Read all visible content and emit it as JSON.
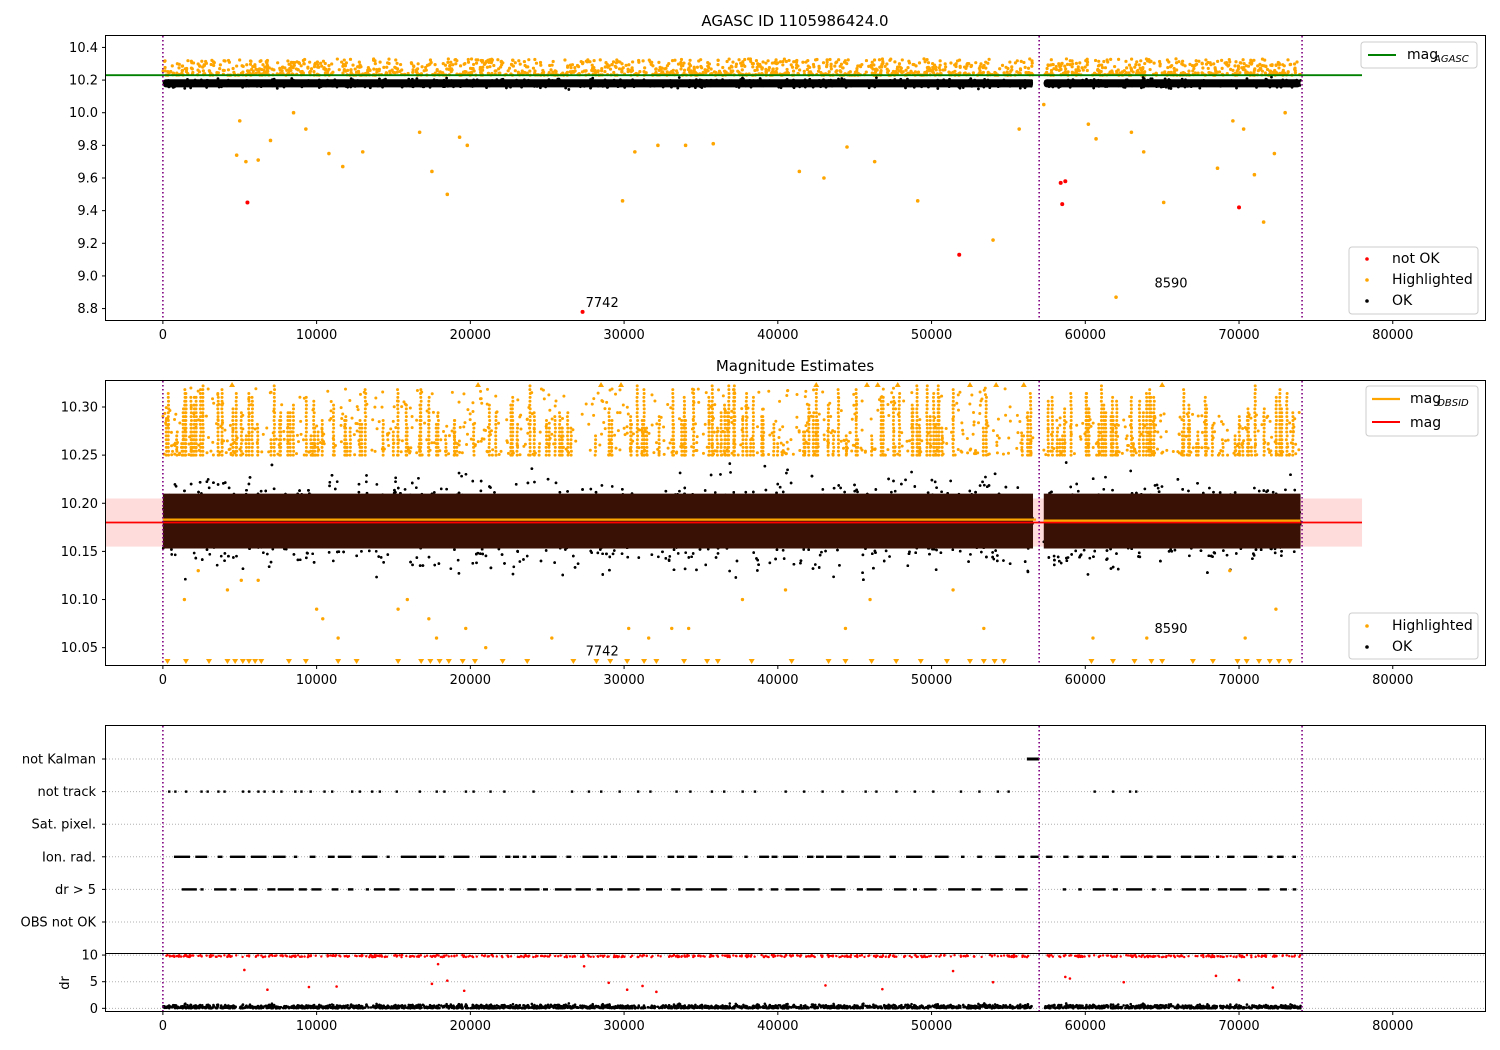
{
  "chart_data": [
    {
      "type": "scatter",
      "title": "AGASC ID 1105986424.0",
      "xlim": [
        -3700,
        86000
      ],
      "ylim": [
        8.73,
        10.47
      ],
      "xticks": [
        0,
        10000,
        20000,
        30000,
        40000,
        50000,
        60000,
        70000,
        80000
      ],
      "yticks": [
        8.8,
        9.0,
        9.2,
        9.4,
        9.6,
        9.8,
        10.0,
        10.2,
        10.4
      ],
      "ytick_labels": [
        "8.8",
        "9.0",
        "9.2",
        "9.4",
        "9.6",
        "9.8",
        "10.0",
        "10.2",
        "10.4"
      ],
      "vlines": [
        0,
        57000,
        74100
      ],
      "reference_line": {
        "name": "mag_AGASC",
        "y": 10.23,
        "x": [
          -3700,
          78000
        ],
        "color": "#008000"
      },
      "series": [
        {
          "name": "not OK",
          "color": "#ff0000",
          "points": [
            [
              5500,
              9.45
            ],
            [
              27300,
              8.78
            ],
            [
              51800,
              9.13
            ],
            [
              58400,
              9.57
            ],
            [
              58700,
              9.58
            ],
            [
              58500,
              9.44
            ],
            [
              70000,
              9.42
            ]
          ]
        },
        {
          "name": "Highlighted",
          "color": "#ffa500",
          "band": {
            "x": [
              0,
              74000
            ],
            "y_range": [
              10.23,
              10.33
            ]
          },
          "points": [
            [
              4800,
              9.74
            ],
            [
              5000,
              9.95
            ],
            [
              5400,
              9.7
            ],
            [
              6200,
              9.71
            ],
            [
              7000,
              9.83
            ],
            [
              8500,
              10.0
            ],
            [
              9300,
              9.9
            ],
            [
              10800,
              9.75
            ],
            [
              11700,
              9.67
            ],
            [
              13000,
              9.76
            ],
            [
              16700,
              9.88
            ],
            [
              17500,
              9.64
            ],
            [
              19300,
              9.85
            ],
            [
              19800,
              9.8
            ],
            [
              18500,
              9.5
            ],
            [
              29900,
              9.46
            ],
            [
              30700,
              9.76
            ],
            [
              32200,
              9.8
            ],
            [
              34000,
              9.8
            ],
            [
              35800,
              9.81
            ],
            [
              41400,
              9.64
            ],
            [
              43000,
              9.6
            ],
            [
              44500,
              9.79
            ],
            [
              46300,
              9.7
            ],
            [
              49100,
              9.46
            ],
            [
              54000,
              9.22
            ],
            [
              55700,
              9.9
            ],
            [
              57300,
              10.05
            ],
            [
              60200,
              9.93
            ],
            [
              60700,
              9.84
            ],
            [
              62000,
              8.87
            ],
            [
              63000,
              9.88
            ],
            [
              63800,
              9.76
            ],
            [
              65100,
              9.45
            ],
            [
              68600,
              9.66
            ],
            [
              69600,
              9.95
            ],
            [
              70300,
              9.9
            ],
            [
              71000,
              9.62
            ],
            [
              71600,
              9.33
            ],
            [
              72300,
              9.75
            ],
            [
              73000,
              10.0
            ]
          ]
        },
        {
          "name": "OK",
          "color": "#000000",
          "band": {
            "x": [
              0,
              74000
            ],
            "y_range": [
              10.13,
              10.23
            ]
          }
        }
      ],
      "annotations": [
        {
          "text": "7742",
          "x": 27500,
          "y": 8.81
        },
        {
          "text": "8590",
          "x": 64500,
          "y": 8.93
        }
      ],
      "legend": {
        "position": "upper-right",
        "entries": [
          "mag_AGASC"
        ]
      },
      "legend2": {
        "position": "lower-right",
        "entries": [
          "not OK",
          "Highlighted",
          "OK"
        ]
      }
    },
    {
      "type": "scatter",
      "title": "Magnitude Estimates",
      "xlim": [
        -3700,
        86000
      ],
      "ylim": [
        10.032,
        10.327
      ],
      "xticks": [
        0,
        10000,
        20000,
        30000,
        40000,
        50000,
        60000,
        70000,
        80000
      ],
      "yticks": [
        10.05,
        10.1,
        10.15,
        10.2,
        10.25,
        10.3
      ],
      "ytick_labels": [
        "10.05",
        "10.10",
        "10.15",
        "10.20",
        "10.25",
        "10.30"
      ],
      "vlines": [
        0,
        57000,
        74100
      ],
      "mag": {
        "y": 10.18,
        "band": [
          10.155,
          10.205
        ],
        "x": [
          -3700,
          78000
        ],
        "color": "#ff0000"
      },
      "mag_OBSID": {
        "segments": [
          {
            "x": [
              0,
              56800
            ],
            "y": 10.183
          },
          {
            "x": [
              57300,
              74000
            ],
            "y": 10.182
          }
        ],
        "color": "#ffa500"
      },
      "series": [
        {
          "name": "Highlighted",
          "color": "#ffa500",
          "band": {
            "x": [
              0,
              74000
            ],
            "y_range": [
              10.25,
              10.33
            ]
          },
          "points": [
            [
              1400,
              10.1
            ],
            [
              2300,
              10.13
            ],
            [
              4200,
              10.11
            ],
            [
              5100,
              10.12
            ],
            [
              6200,
              10.12
            ],
            [
              10000,
              10.09
            ],
            [
              10400,
              10.08
            ],
            [
              11400,
              10.06
            ],
            [
              15300,
              10.09
            ],
            [
              15900,
              10.1
            ],
            [
              17300,
              10.08
            ],
            [
              17800,
              10.06
            ],
            [
              19700,
              10.07
            ],
            [
              21000,
              10.05
            ],
            [
              25300,
              10.06
            ],
            [
              30300,
              10.07
            ],
            [
              31600,
              10.06
            ],
            [
              33100,
              10.07
            ],
            [
              34200,
              10.07
            ],
            [
              37700,
              10.1
            ],
            [
              40500,
              10.11
            ],
            [
              44400,
              10.07
            ],
            [
              46000,
              10.1
            ],
            [
              51400,
              10.11
            ],
            [
              53400,
              10.07
            ],
            [
              60500,
              10.06
            ],
            [
              64000,
              10.06
            ],
            [
              69400,
              10.13
            ],
            [
              70400,
              10.06
            ],
            [
              72400,
              10.09
            ]
          ],
          "clipped_low_x": [
            300,
            1500,
            3000,
            4200,
            4700,
            5200,
            5600,
            6000,
            6400,
            8200,
            9300,
            11400,
            12600,
            15300,
            16800,
            17400,
            18000,
            18600,
            19500,
            20300,
            22100,
            23700,
            26700,
            28200,
            29100,
            30200,
            31300,
            32100,
            33900,
            35400,
            36100,
            38300,
            40900,
            43300,
            44400,
            46100,
            47700,
            49300,
            51000,
            52500,
            53400,
            54100,
            54700,
            60400,
            61800,
            63200,
            64300,
            65000,
            67000,
            68300,
            69900,
            70500,
            71300,
            72000,
            72600,
            73300
          ]
        },
        {
          "name": "OK",
          "color": "#000000",
          "band": {
            "x": [
              0,
              74000
            ],
            "y_range": [
              10.11,
              10.25
            ]
          }
        }
      ],
      "annotations": [
        {
          "text": "7742",
          "x": 27500,
          "y": 10.042
        },
        {
          "text": "8590",
          "x": 64500,
          "y": 10.065
        }
      ],
      "legend": {
        "position": "upper-right",
        "entries": [
          "mag_OBSID",
          "mag"
        ]
      },
      "legend2": {
        "position": "lower-right",
        "entries": [
          "Highlighted",
          "OK"
        ]
      }
    },
    {
      "type": "scatter",
      "xlim": [
        -3700,
        86000
      ],
      "yticks_labels": [
        "not Kalman",
        "not track",
        "Sat. pixel.",
        "Ion. rad.",
        "dr > 5",
        "OBS not OK"
      ],
      "vlines": [
        0,
        57000,
        74100
      ],
      "flags": {
        "not Kalman": {
          "x_range": [
            56200,
            57000
          ]
        },
        "not track": {
          "x_points": [
            400,
            800,
            1500,
            2500,
            2900,
            3600,
            4000,
            5200,
            5600,
            6200,
            6600,
            7200,
            7700,
            8600,
            9000,
            9600,
            10500,
            11000,
            12300,
            12800,
            13600,
            14100,
            15200,
            16700,
            17800,
            18300,
            19700,
            20200,
            21300,
            22200,
            24100,
            26600,
            27700,
            28500,
            29700,
            30900,
            31700,
            33400,
            34300,
            35700,
            36500,
            37700,
            38500,
            40500,
            41700,
            42900,
            44200,
            45700,
            46400,
            47700,
            48900,
            50100,
            51900,
            53100,
            54300,
            55000,
            60600,
            61800,
            62900,
            63300
          ]
        },
        "Sat. pixel.": {
          "x_points": []
        },
        "Ion. rad.": {
          "x_range": [
            0,
            74000
          ]
        },
        "dr > 5": {
          "x_range": [
            0,
            74000
          ]
        },
        "OBS not OK": {
          "x_points": []
        }
      }
    },
    {
      "type": "scatter",
      "xlim": [
        -3700,
        86000
      ],
      "ylim": [
        -0.5,
        10.2
      ],
      "xticks": [
        0,
        10000,
        20000,
        30000,
        40000,
        50000,
        60000,
        70000,
        80000
      ],
      "yticks": [
        0,
        5,
        10
      ],
      "ylabel": "dr",
      "vlines": [
        0,
        57000,
        74100
      ],
      "series": [
        {
          "name": "dr",
          "color": "#000000",
          "band": {
            "x": [
              0,
              74000
            ],
            "y_range": [
              0,
              1.3
            ]
          }
        },
        {
          "name": "dr > 5",
          "color": "#ff0000",
          "band": {
            "x": [
              0,
              74000
            ],
            "y_range": [
              9.5,
              10
            ]
          },
          "points": [
            [
              5300,
              7.2
            ],
            [
              6800,
              3.5
            ],
            [
              9500,
              4.0
            ],
            [
              11300,
              4.1
            ],
            [
              17500,
              4.6
            ],
            [
              17900,
              8.3
            ],
            [
              18500,
              5.2
            ],
            [
              19600,
              3.3
            ],
            [
              27400,
              7.9
            ],
            [
              29000,
              4.8
            ],
            [
              30200,
              3.5
            ],
            [
              31200,
              4.2
            ],
            [
              32100,
              3.1
            ],
            [
              43100,
              4.3
            ],
            [
              46800,
              3.6
            ],
            [
              51400,
              7.0
            ],
            [
              54000,
              4.9
            ],
            [
              58700,
              5.9
            ],
            [
              59000,
              5.6
            ],
            [
              62500,
              4.9
            ],
            [
              68500,
              6.1
            ],
            [
              70000,
              5.3
            ],
            [
              72200,
              3.9
            ]
          ]
        }
      ]
    }
  ]
}
